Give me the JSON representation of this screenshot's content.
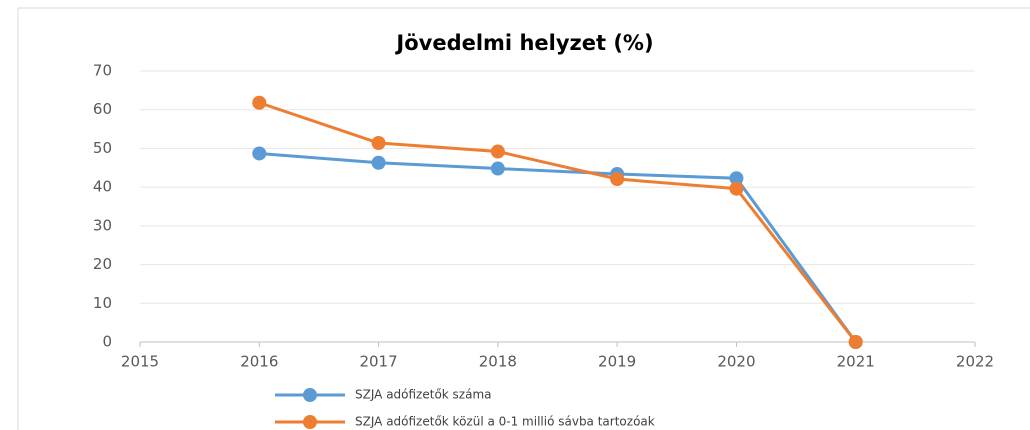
{
  "chart_data": {
    "type": "line",
    "title": "Jövedelmi helyzet (%)",
    "x": [
      2016,
      2017,
      2018,
      2019,
      2020,
      2021
    ],
    "series": [
      {
        "name": "SZJA adófizetők száma",
        "color": "#5b9bd5",
        "values": [
          48.7,
          46.3,
          44.8,
          43.4,
          42.3,
          0
        ]
      },
      {
        "name": "SZJA adófizetők közül a 0-1 millió sávba tartozóak",
        "color": "#ed7d31",
        "values": [
          61.8,
          51.4,
          49.2,
          42.1,
          39.6,
          0
        ]
      }
    ],
    "xlim": [
      2015,
      2022
    ],
    "xticks": [
      2015,
      2016,
      2017,
      2018,
      2019,
      2020,
      2021,
      2022
    ],
    "ylim": [
      0,
      70
    ],
    "yticks": [
      0,
      10,
      20,
      30,
      40,
      50,
      60,
      70
    ],
    "grid": true
  }
}
